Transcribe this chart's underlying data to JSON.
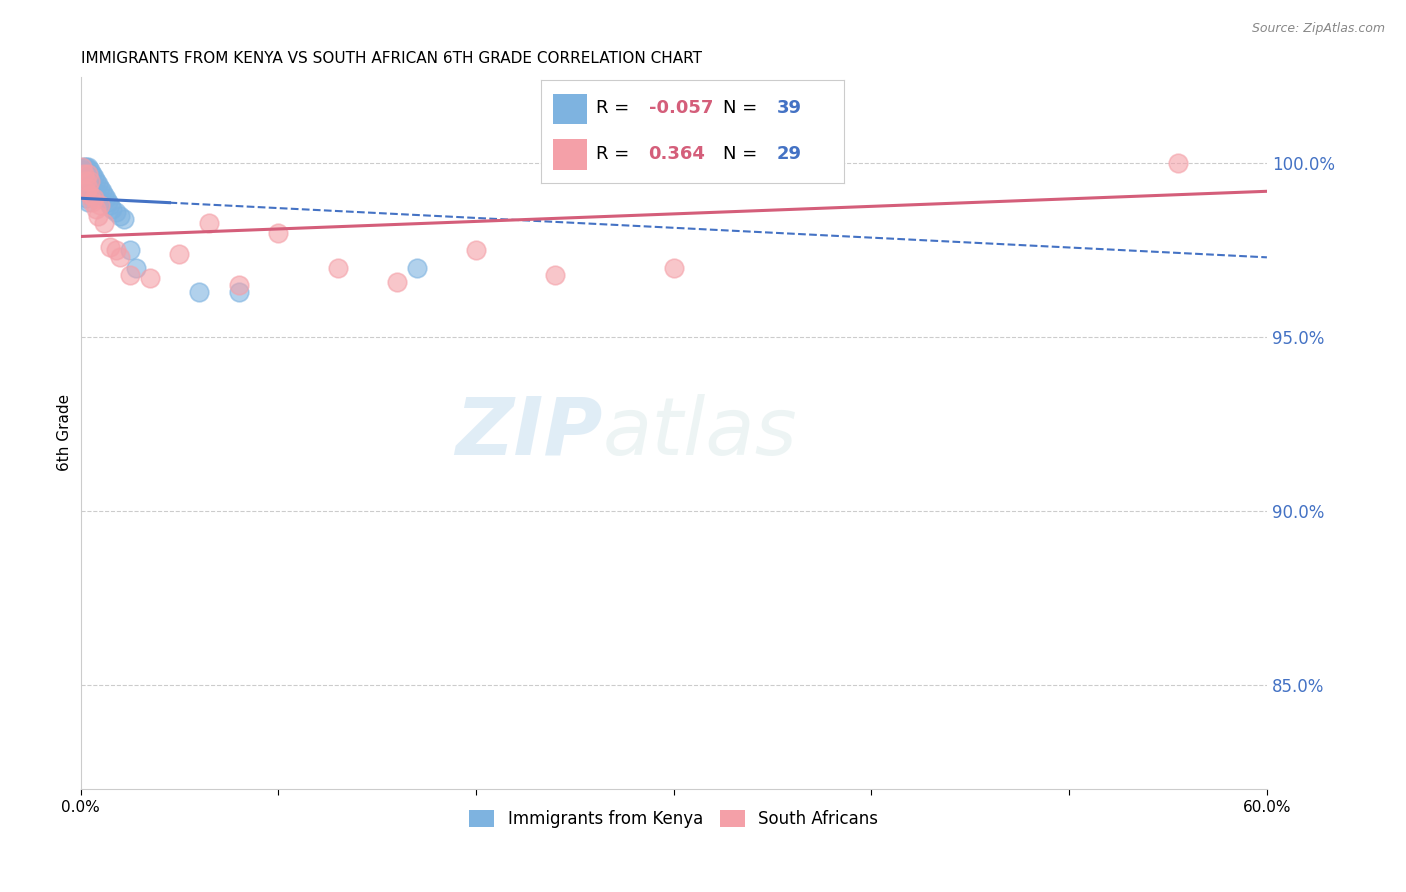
{
  "title": "IMMIGRANTS FROM KENYA VS SOUTH AFRICAN 6TH GRADE CORRELATION CHART",
  "source": "Source: ZipAtlas.com",
  "ylabel": "6th Grade",
  "ytick_labels": [
    "85.0%",
    "90.0%",
    "95.0%",
    "100.0%"
  ],
  "ytick_values": [
    0.85,
    0.9,
    0.95,
    1.0
  ],
  "xlim": [
    0.0,
    0.6
  ],
  "ylim": [
    0.82,
    1.025
  ],
  "legend_label1": "Immigrants from Kenya",
  "legend_label2": "South Africans",
  "R_kenya": -0.057,
  "N_kenya": 39,
  "R_sa": 0.364,
  "N_sa": 29,
  "color_kenya": "#7EB3E0",
  "color_sa": "#F4A0A8",
  "trendline_color_kenya": "#4472C4",
  "trendline_color_sa": "#D45E7A",
  "watermark_text": "ZIP",
  "watermark_text2": "atlas",
  "grid_color": "#cccccc",
  "background_color": "#ffffff",
  "kenya_x": [
    0.001,
    0.001,
    0.002,
    0.002,
    0.002,
    0.003,
    0.003,
    0.003,
    0.003,
    0.004,
    0.004,
    0.004,
    0.004,
    0.005,
    0.005,
    0.005,
    0.006,
    0.006,
    0.007,
    0.007,
    0.008,
    0.008,
    0.009,
    0.01,
    0.011,
    0.012,
    0.013,
    0.014,
    0.015,
    0.016,
    0.018,
    0.02,
    0.022,
    0.025,
    0.028,
    0.06,
    0.08,
    0.17,
    0.245
  ],
  "kenya_y": [
    0.998,
    0.995,
    0.999,
    0.996,
    0.992,
    0.999,
    0.997,
    0.994,
    0.99,
    0.999,
    0.997,
    0.993,
    0.989,
    0.998,
    0.995,
    0.991,
    0.997,
    0.993,
    0.996,
    0.992,
    0.995,
    0.991,
    0.994,
    0.993,
    0.992,
    0.991,
    0.99,
    0.989,
    0.988,
    0.987,
    0.986,
    0.985,
    0.984,
    0.975,
    0.97,
    0.963,
    0.963,
    0.97,
    1.0
  ],
  "sa_x": [
    0.001,
    0.002,
    0.003,
    0.003,
    0.004,
    0.004,
    0.005,
    0.005,
    0.006,
    0.007,
    0.008,
    0.009,
    0.01,
    0.012,
    0.015,
    0.018,
    0.02,
    0.025,
    0.035,
    0.05,
    0.065,
    0.08,
    0.1,
    0.13,
    0.16,
    0.2,
    0.24,
    0.3,
    0.555
  ],
  "sa_y": [
    0.999,
    0.997,
    0.995,
    0.992,
    0.997,
    0.993,
    0.995,
    0.991,
    0.989,
    0.99,
    0.987,
    0.985,
    0.988,
    0.983,
    0.976,
    0.975,
    0.973,
    0.968,
    0.967,
    0.974,
    0.983,
    0.965,
    0.98,
    0.97,
    0.966,
    0.975,
    0.968,
    0.97,
    1.0
  ]
}
